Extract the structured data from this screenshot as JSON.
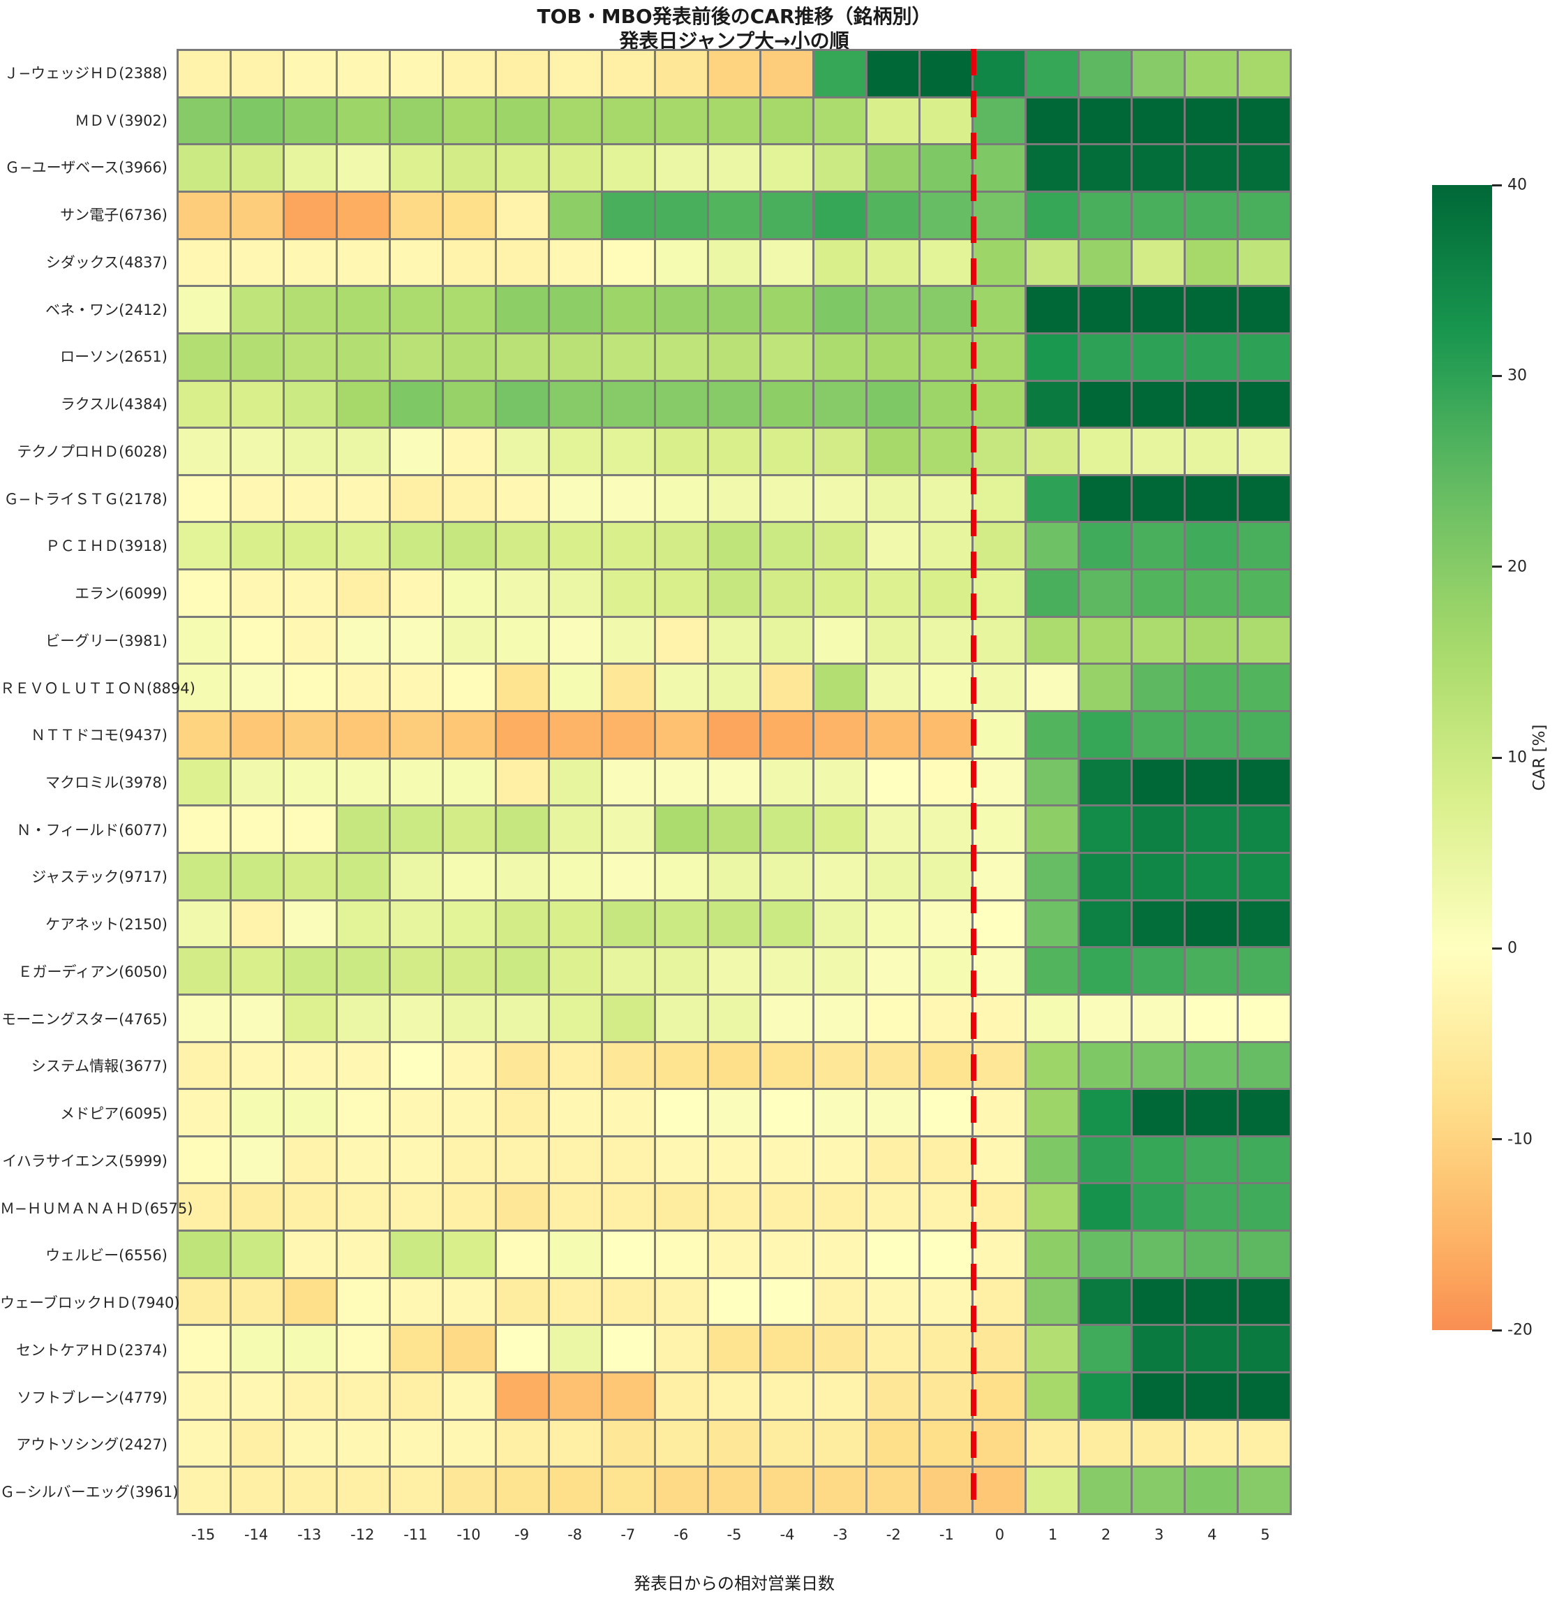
{
  "chart_data": {
    "type": "heatmap",
    "title": "TOB・MBO発表前後のCAR推移（銘柄別）",
    "subtitle": "発表日ジャンプ大→小の順",
    "xlabel": "発表日からの相対営業日数",
    "x_ticks": [
      "-15",
      "-14",
      "-13",
      "-12",
      "-11",
      "-10",
      "-9",
      "-8",
      "-7",
      "-6",
      "-5",
      "-4",
      "-3",
      "-2",
      "-1",
      "0",
      "1",
      "2",
      "3",
      "4",
      "5"
    ],
    "colorbar": {
      "label": "CAR [%]",
      "tick_labels": [
        "40",
        "30",
        "20",
        "10",
        "0",
        "-10",
        "-20"
      ],
      "tick_values": [
        40,
        30,
        20,
        10,
        0,
        -10,
        -20
      ],
      "display_min": -20,
      "display_max": 40,
      "norm_min": -40,
      "norm_max": 40,
      "colormap": "RdYlGn"
    },
    "event_line": {
      "between_ticks": [
        "-1",
        "0"
      ],
      "color": "#e8000b",
      "style": "dashed"
    },
    "grid_color": "#7a7a7a",
    "rows": [
      {
        "label": "Ｊ−ウェッジＨＤ(2388)",
        "values": [
          -3,
          -3,
          -2,
          -2,
          -2,
          -3,
          -4,
          -3,
          -4,
          -6,
          -10,
          -11,
          29,
          40,
          40,
          35,
          29,
          25,
          20,
          17,
          16
        ]
      },
      {
        "label": "ＭＤＶ(3902)",
        "values": [
          20,
          21,
          19,
          17,
          18,
          16,
          17,
          16,
          16,
          16,
          16,
          16,
          15,
          8,
          8,
          25,
          40,
          40,
          40,
          40,
          40
        ]
      },
      {
        "label": "Ｇ−ユーザベース(3966)",
        "values": [
          10,
          9,
          5,
          3,
          7,
          9,
          8,
          8,
          6,
          4,
          4,
          6,
          10,
          18,
          21,
          21,
          39,
          39,
          39,
          39,
          39
        ]
      },
      {
        "label": "サン電子(6736)",
        "values": [
          -11,
          -11,
          -17,
          -16,
          -9,
          -8,
          -3,
          19,
          27,
          27,
          26,
          27,
          29,
          26,
          24,
          22,
          29,
          27,
          27,
          27,
          27
        ]
      },
      {
        "label": "シダックス(4837)",
        "values": [
          -2,
          -2,
          -2,
          -2,
          -2,
          -3,
          -3,
          -2,
          -1,
          2,
          4,
          3,
          8,
          7,
          6,
          17,
          11,
          18,
          9,
          16,
          12
        ]
      },
      {
        "label": "ベネ・ワン(2412)",
        "values": [
          2,
          12,
          14,
          15,
          15,
          15,
          19,
          19,
          17,
          18,
          18,
          17,
          21,
          20,
          20,
          17,
          40,
          40,
          40,
          40,
          40
        ]
      },
      {
        "label": "ローソン(2651)",
        "values": [
          14,
          14,
          13,
          14,
          13,
          14,
          13,
          13,
          12,
          12,
          13,
          12,
          15,
          16,
          16,
          16,
          32,
          30,
          30,
          30,
          30
        ]
      },
      {
        "label": "ラクスル(4384)",
        "values": [
          8,
          8,
          10,
          16,
          21,
          18,
          22,
          20,
          20,
          20,
          20,
          19,
          20,
          21,
          17,
          16,
          37,
          40,
          40,
          40,
          40
        ]
      },
      {
        "label": "テクノプロＨＤ(6028)",
        "values": [
          3,
          3,
          4,
          4,
          1,
          -2,
          4,
          6,
          6,
          8,
          8,
          8,
          9,
          16,
          15,
          11,
          9,
          6,
          5,
          5,
          4
        ]
      },
      {
        "label": "Ｇ−トライＳＴＧ(2178)",
        "values": [
          -1,
          -2,
          -2,
          -2,
          -4,
          -3,
          -2,
          1,
          1,
          2,
          3,
          3,
          3,
          4,
          4,
          6,
          30,
          40,
          40,
          40,
          40
        ]
      },
      {
        "label": "ＰＣＩＨＤ(3918)",
        "values": [
          6,
          8,
          8,
          7,
          10,
          11,
          9,
          8,
          8,
          9,
          12,
          10,
          9,
          3,
          5,
          9,
          23,
          28,
          27,
          28,
          27
        ]
      },
      {
        "label": "エラン(6099)",
        "values": [
          -1,
          -2,
          -2,
          -4,
          -2,
          2,
          3,
          4,
          7,
          8,
          11,
          9,
          8,
          7,
          8,
          6,
          27,
          25,
          26,
          26,
          26
        ]
      },
      {
        "label": "ビーグリー(3981)",
        "values": [
          2,
          -1,
          -2,
          1,
          1,
          3,
          2,
          1,
          3,
          -3,
          4,
          5,
          2,
          5,
          4,
          5,
          15,
          16,
          15,
          16,
          15
        ]
      },
      {
        "label": "ＲＥＶＯＬＵＴＩＯＮ(8894)",
        "values": [
          2,
          1,
          -1,
          -2,
          -2,
          -1,
          -7,
          2,
          -6,
          3,
          4,
          -6,
          14,
          3,
          2,
          3,
          1,
          18,
          25,
          26,
          26
        ]
      },
      {
        "label": "ＮＴＴドコモ(9437)",
        "values": [
          -10,
          -12,
          -11,
          -12,
          -11,
          -12,
          -16,
          -15,
          -15,
          -13,
          -17,
          -16,
          -15,
          -14,
          -14,
          2,
          26,
          29,
          27,
          27,
          27
        ]
      },
      {
        "label": "マクロミル(3978)",
        "values": [
          7,
          3,
          2,
          2,
          2,
          2,
          -4,
          5,
          1,
          1,
          1,
          3,
          3,
          0,
          -1,
          1,
          22,
          37,
          40,
          40,
          40
        ]
      },
      {
        "label": "Ｎ・フィールド(6077)",
        "values": [
          -1,
          -1,
          -1,
          11,
          10,
          9,
          11,
          5,
          3,
          15,
          13,
          10,
          8,
          3,
          3,
          2,
          19,
          34,
          36,
          35,
          35
        ]
      },
      {
        "label": "ジャステック(9717)",
        "values": [
          10,
          10,
          9,
          10,
          4,
          2,
          3,
          2,
          1,
          2,
          4,
          4,
          3,
          4,
          4,
          1,
          24,
          35,
          35,
          34,
          34
        ]
      },
      {
        "label": "ケアネット(2150)",
        "values": [
          3,
          -3,
          1,
          6,
          5,
          6,
          9,
          8,
          11,
          10,
          11,
          10,
          4,
          2,
          1,
          0,
          23,
          36,
          39,
          40,
          39
        ]
      },
      {
        "label": "Ｅガーディアン(6050)",
        "values": [
          9,
          8,
          10,
          10,
          9,
          9,
          10,
          7,
          5,
          5,
          3,
          3,
          3,
          1,
          2,
          1,
          26,
          29,
          28,
          27,
          27
        ]
      },
      {
        "label": "モーニングスター(4765)",
        "values": [
          1,
          1,
          7,
          4,
          3,
          4,
          4,
          6,
          9,
          4,
          4,
          1,
          1,
          -1,
          -2,
          -2,
          2,
          1,
          1,
          0,
          0
        ]
      },
      {
        "label": "システム情報(3677)",
        "values": [
          -3,
          -2,
          -2,
          -2,
          0,
          -2,
          -6,
          -4,
          -6,
          -7,
          -8,
          -7,
          -6,
          -6,
          -7,
          -6,
          17,
          21,
          22,
          23,
          24
        ]
      },
      {
        "label": "メドピア(6095)",
        "values": [
          -2,
          2,
          2,
          -1,
          -2,
          -2,
          -4,
          -2,
          -2,
          0,
          1,
          0,
          1,
          1,
          0,
          -2,
          17,
          33,
          40,
          40,
          40
        ]
      },
      {
        "label": "イハラサイエンス(5999)",
        "values": [
          -1,
          1,
          -3,
          -2,
          -2,
          -3,
          -3,
          -3,
          -3,
          -2,
          -2,
          -2,
          -2,
          -4,
          -4,
          -2,
          21,
          30,
          29,
          28,
          28
        ]
      },
      {
        "label": "Ｍ−ＨＵＭＡＮＡＨＤ(6575)",
        "values": [
          -4,
          -5,
          -4,
          -3,
          -3,
          -4,
          -6,
          -4,
          -4,
          -5,
          -4,
          -4,
          -4,
          -3,
          -3,
          -4,
          16,
          33,
          30,
          28,
          28
        ]
      },
      {
        "label": "ウェルビー(6556)",
        "values": [
          12,
          10,
          -2,
          -2,
          10,
          8,
          -1,
          2,
          0,
          -1,
          -2,
          -2,
          -2,
          0,
          0,
          -2,
          19,
          24,
          24,
          25,
          25
        ]
      },
      {
        "label": "ウェーブロックＨＤ(7940)",
        "values": [
          -5,
          -5,
          -8,
          -1,
          -2,
          -2,
          -5,
          -4,
          -4,
          -3,
          0,
          0,
          -3,
          -2,
          -2,
          -4,
          20,
          37,
          40,
          40,
          40
        ]
      },
      {
        "label": "セントケアＨＤ(2374)",
        "values": [
          -1,
          2,
          2,
          -1,
          -7,
          -9,
          0,
          4,
          0,
          -3,
          -7,
          -7,
          -6,
          -4,
          -5,
          -6,
          14,
          28,
          37,
          37,
          37
        ]
      },
      {
        "label": "ソフトブレーン(4779)",
        "values": [
          -2,
          -2,
          -3,
          -3,
          -4,
          -2,
          -16,
          -13,
          -12,
          -4,
          -3,
          -3,
          -3,
          -6,
          -6,
          -8,
          16,
          33,
          40,
          40,
          40
        ]
      },
      {
        "label": "アウトソシング(2427)",
        "values": [
          -2,
          -4,
          -2,
          -2,
          -2,
          -2,
          -4,
          -4,
          -6,
          -5,
          -6,
          -5,
          -5,
          -8,
          -8,
          -9,
          -5,
          -5,
          -5,
          -4,
          -4
        ]
      },
      {
        "label": "Ｇ−シルバーエッグ(3961)",
        "values": [
          -3,
          -4,
          -4,
          -4,
          -4,
          -6,
          -7,
          -8,
          -7,
          -9,
          -9,
          -9,
          -9,
          -9,
          -11,
          -12,
          8,
          20,
          20,
          21,
          20
        ]
      }
    ]
  }
}
